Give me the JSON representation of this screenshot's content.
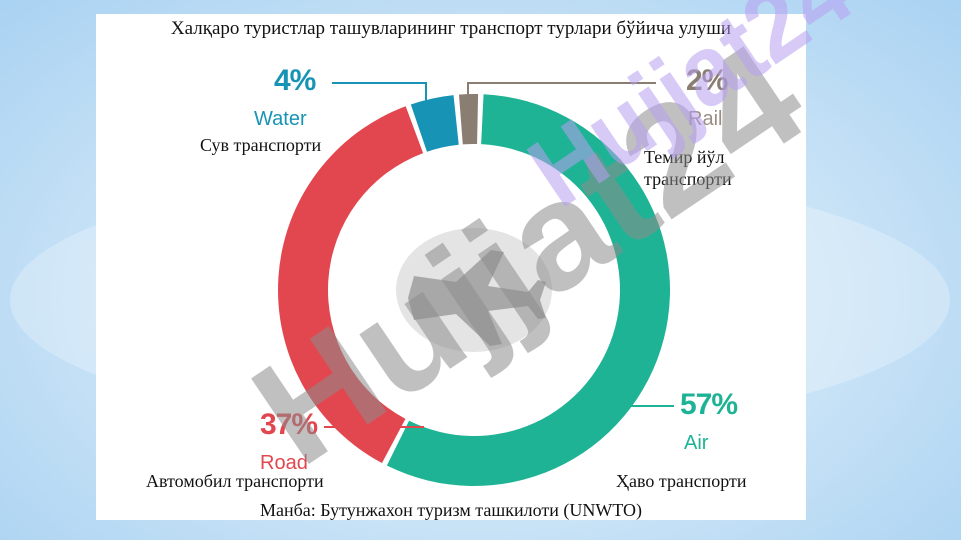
{
  "chart_data": {
    "type": "pie",
    "title": "Халқаро туристлар ташувларининг транспорт турлари бўйича улуши",
    "source": "Манба: Бутунжахон туризм ташкилоти (UNWTO)",
    "slices": [
      {
        "key": "air",
        "value": 57,
        "pct_label": "57%",
        "label_en": "Air",
        "label_uz": "Ҳаво транспорти",
        "color": "#1fb396"
      },
      {
        "key": "road",
        "value": 37,
        "pct_label": "37%",
        "label_en": "Road",
        "label_uz": "Автомобил транспорти",
        "color": "#e2474f"
      },
      {
        "key": "water",
        "value": 4,
        "pct_label": "4%",
        "label_en": "Water",
        "label_uz": "Сув транспорти",
        "color": "#1793b5"
      },
      {
        "key": "rail",
        "value": 2,
        "pct_label": "2%",
        "label_en": "Rail",
        "label_uz_line1": "Темир йўл",
        "label_uz_line2": "транспорти",
        "color": "#8a7e72"
      }
    ]
  },
  "watermark": {
    "text": "Hujjat24",
    "colors": [
      "#8c8c8c",
      "#b89ff0"
    ]
  },
  "colors": {
    "air": "#1fb396",
    "road": "#e2474f",
    "water": "#1793b5",
    "rail": "#8a7e72",
    "rail_text": "#9a8e83"
  }
}
